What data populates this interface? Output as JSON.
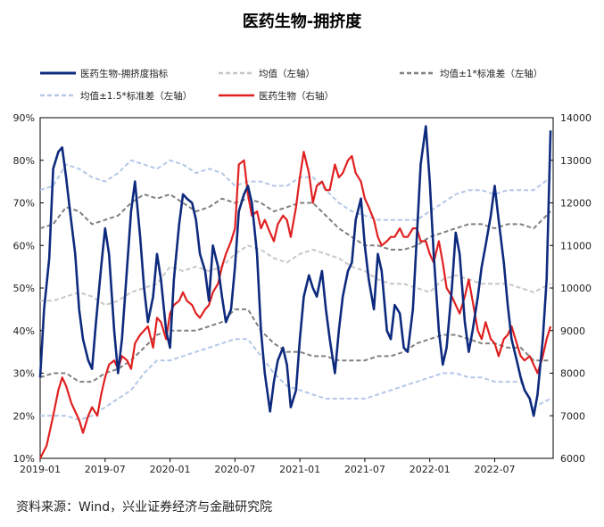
{
  "chart_data": {
    "type": "line",
    "title": "医药生物-拥挤度",
    "source": "资料来源：Wind，兴业证券经济与金融研究院",
    "colors": {
      "crowding": "#0d2a7e",
      "mean": "#c7c7c7",
      "band1": "#808080",
      "band15": "#b4c7e7",
      "index": "#e02020"
    },
    "legend": [
      {
        "key": "crowding",
        "label": "医药生物-拥挤度指标"
      },
      {
        "key": "mean",
        "label": "均值（左轴）"
      },
      {
        "key": "band1",
        "label": "均值±1*标准差（左轴）"
      },
      {
        "key": "band15",
        "label": "均值±1.5*标准差（左轴）"
      },
      {
        "key": "index",
        "label": "医药生物（右轴）"
      }
    ],
    "x_ticks": [
      "2019-01",
      "2019-07",
      "2020-01",
      "2020-07",
      "2021-01",
      "2021-07",
      "2022-01",
      "2022-07"
    ],
    "x_tick_times": [
      2019.0,
      2019.5,
      2020.0,
      2020.5,
      2021.0,
      2021.5,
      2022.0,
      2022.5
    ],
    "xlim": [
      2019.0,
      2022.95
    ],
    "y_left": {
      "ticks": [
        "10%",
        "20%",
        "30%",
        "40%",
        "50%",
        "60%",
        "70%",
        "80%",
        "90%"
      ],
      "range": [
        10,
        90
      ]
    },
    "y_right": {
      "ticks": [
        "6000",
        "7000",
        "8000",
        "9000",
        "10000",
        "11000",
        "12000",
        "13000",
        "14000"
      ],
      "range": [
        6000,
        14000
      ]
    },
    "series": {
      "crowding": {
        "name": "医药生物-拥挤度指标",
        "axis": "left",
        "x": [
          2019.0,
          2019.03,
          2019.07,
          2019.1,
          2019.14,
          2019.17,
          2019.2,
          2019.23,
          2019.27,
          2019.3,
          2019.33,
          2019.37,
          2019.4,
          2019.43,
          2019.47,
          2019.5,
          2019.53,
          2019.57,
          2019.6,
          2019.63,
          2019.67,
          2019.7,
          2019.73,
          2019.77,
          2019.8,
          2019.83,
          2019.87,
          2019.9,
          2019.93,
          2019.97,
          2020.0,
          2020.03,
          2020.07,
          2020.1,
          2020.13,
          2020.17,
          2020.2,
          2020.23,
          2020.27,
          2020.3,
          2020.33,
          2020.37,
          2020.4,
          2020.43,
          2020.47,
          2020.5,
          2020.53,
          2020.57,
          2020.6,
          2020.63,
          2020.67,
          2020.7,
          2020.73,
          2020.77,
          2020.8,
          2020.83,
          2020.87,
          2020.9,
          2020.93,
          2020.97,
          2021.0,
          2021.03,
          2021.07,
          2021.1,
          2021.13,
          2021.17,
          2021.2,
          2021.23,
          2021.27,
          2021.3,
          2021.33,
          2021.37,
          2021.4,
          2021.43,
          2021.47,
          2021.5,
          2021.53,
          2021.57,
          2021.6,
          2021.63,
          2021.67,
          2021.7,
          2021.73,
          2021.77,
          2021.8,
          2021.83,
          2021.87,
          2021.9,
          2021.93,
          2021.97,
          2022.0,
          2022.03,
          2022.07,
          2022.1,
          2022.13,
          2022.17,
          2022.2,
          2022.23,
          2022.27,
          2022.3,
          2022.33,
          2022.37,
          2022.4,
          2022.43,
          2022.47,
          2022.5,
          2022.53,
          2022.57,
          2022.6,
          2022.63,
          2022.67,
          2022.7,
          2022.73,
          2022.77,
          2022.8,
          2022.83,
          2022.87,
          2022.9,
          2022.93
        ],
        "y": [
          29,
          45,
          57,
          78,
          82,
          83,
          76,
          68,
          58,
          45,
          38,
          33,
          31,
          42,
          55,
          64,
          58,
          40,
          30,
          38,
          55,
          68,
          75,
          62,
          50,
          42,
          48,
          58,
          52,
          40,
          36,
          52,
          65,
          72,
          71,
          70,
          66,
          58,
          54,
          47,
          60,
          55,
          48,
          42,
          45,
          55,
          68,
          72,
          74,
          70,
          58,
          40,
          30,
          21,
          28,
          33,
          36,
          32,
          22,
          26,
          38,
          48,
          53,
          50,
          48,
          54,
          45,
          38,
          30,
          40,
          48,
          54,
          56,
          66,
          71,
          60,
          52,
          45,
          58,
          54,
          40,
          38,
          46,
          44,
          36,
          35,
          45,
          62,
          79,
          88,
          75,
          58,
          40,
          32,
          36,
          50,
          63,
          58,
          42,
          35,
          40,
          48,
          55,
          60,
          67,
          74,
          66,
          56,
          46,
          38,
          33,
          29,
          26,
          24,
          20,
          25,
          38,
          52,
          87
        ]
      },
      "mean": {
        "name": "均值（左轴）",
        "axis": "left",
        "x": [
          2019.0,
          2019.1,
          2019.2,
          2019.3,
          2019.4,
          2019.5,
          2019.6,
          2019.7,
          2019.8,
          2019.9,
          2020.0,
          2020.1,
          2020.2,
          2020.3,
          2020.4,
          2020.5,
          2020.6,
          2020.7,
          2020.8,
          2020.9,
          2021.0,
          2021.1,
          2021.2,
          2021.3,
          2021.4,
          2021.5,
          2021.6,
          2021.7,
          2021.8,
          2021.9,
          2022.0,
          2022.1,
          2022.2,
          2022.3,
          2022.4,
          2022.5,
          2022.6,
          2022.7,
          2022.8,
          2022.93
        ],
        "y": [
          47,
          47,
          48,
          49,
          48,
          46,
          47,
          49,
          50,
          51,
          55,
          54,
          55,
          54,
          55,
          58,
          60,
          59,
          57,
          56,
          58,
          59,
          58,
          57,
          55,
          54,
          52,
          51,
          51,
          50,
          49,
          52,
          53,
          52,
          51,
          51,
          51,
          50,
          49,
          51
        ]
      },
      "mean_plus_1sd": {
        "name": "均值+1*标准差",
        "axis": "left",
        "x": [
          2019.0,
          2019.1,
          2019.2,
          2019.3,
          2019.4,
          2019.5,
          2019.6,
          2019.7,
          2019.8,
          2019.9,
          2020.0,
          2020.1,
          2020.2,
          2020.3,
          2020.4,
          2020.5,
          2020.6,
          2020.7,
          2020.8,
          2020.9,
          2021.0,
          2021.1,
          2021.2,
          2021.3,
          2021.4,
          2021.5,
          2021.6,
          2021.7,
          2021.8,
          2021.9,
          2022.0,
          2022.1,
          2022.2,
          2022.3,
          2022.4,
          2022.5,
          2022.6,
          2022.7,
          2022.8,
          2022.93
        ],
        "y": [
          64,
          65,
          69,
          68,
          65,
          66,
          67,
          70,
          72,
          71,
          72,
          70,
          68,
          69,
          71,
          70,
          71,
          70,
          68,
          69,
          70,
          70,
          67,
          64,
          62,
          60,
          60,
          59,
          59,
          60,
          62,
          63,
          64,
          65,
          65,
          64,
          65,
          65,
          64,
          68
        ]
      },
      "mean_minus_1sd": {
        "name": "均值-1*标准差",
        "axis": "left",
        "x": [
          2019.0,
          2019.1,
          2019.2,
          2019.3,
          2019.4,
          2019.5,
          2019.6,
          2019.7,
          2019.8,
          2019.9,
          2020.0,
          2020.1,
          2020.2,
          2020.3,
          2020.4,
          2020.5,
          2020.6,
          2020.7,
          2020.8,
          2020.9,
          2021.0,
          2021.1,
          2021.2,
          2021.3,
          2021.4,
          2021.5,
          2021.6,
          2021.7,
          2021.8,
          2021.9,
          2022.0,
          2022.1,
          2022.2,
          2022.3,
          2022.4,
          2022.5,
          2022.6,
          2022.7,
          2022.8,
          2022.93
        ],
        "y": [
          29,
          30,
          30,
          28,
          28,
          30,
          31,
          33,
          36,
          39,
          40,
          40,
          40,
          41,
          42,
          45,
          45,
          40,
          37,
          35,
          35,
          34,
          34,
          33,
          33,
          33,
          34,
          34,
          35,
          37,
          38,
          39,
          39,
          38,
          37,
          37,
          36,
          36,
          33,
          33
        ]
      },
      "mean_plus_15sd": {
        "name": "均值+1.5*标准差",
        "axis": "left",
        "x": [
          2019.0,
          2019.1,
          2019.2,
          2019.3,
          2019.4,
          2019.5,
          2019.6,
          2019.7,
          2019.8,
          2019.9,
          2020.0,
          2020.1,
          2020.2,
          2020.3,
          2020.4,
          2020.5,
          2020.6,
          2020.7,
          2020.8,
          2020.9,
          2021.0,
          2021.1,
          2021.2,
          2021.3,
          2021.4,
          2021.5,
          2021.6,
          2021.7,
          2021.8,
          2021.9,
          2022.0,
          2022.1,
          2022.2,
          2022.3,
          2022.4,
          2022.5,
          2022.6,
          2022.7,
          2022.8,
          2022.93
        ],
        "y": [
          73,
          74,
          79,
          78,
          76,
          75,
          77,
          80,
          79,
          78,
          80,
          79,
          77,
          78,
          77,
          74,
          75,
          75,
          74,
          74,
          76,
          76,
          73,
          70,
          68,
          67,
          66,
          66,
          66,
          66,
          68,
          70,
          72,
          73,
          73,
          72,
          73,
          73,
          73,
          76
        ]
      },
      "mean_minus_15sd": {
        "name": "均值-1.5*标准差",
        "axis": "left",
        "x": [
          2019.0,
          2019.1,
          2019.2,
          2019.3,
          2019.4,
          2019.5,
          2019.6,
          2019.7,
          2019.8,
          2019.9,
          2020.0,
          2020.1,
          2020.2,
          2020.3,
          2020.4,
          2020.5,
          2020.6,
          2020.7,
          2020.8,
          2020.9,
          2021.0,
          2021.1,
          2021.2,
          2021.3,
          2021.4,
          2021.5,
          2021.6,
          2021.7,
          2021.8,
          2021.9,
          2022.0,
          2022.1,
          2022.2,
          2022.3,
          2022.4,
          2022.5,
          2022.6,
          2022.7,
          2022.8,
          2022.93
        ],
        "y": [
          20,
          20,
          20,
          19,
          20,
          22,
          24,
          26,
          30,
          33,
          33,
          34,
          35,
          36,
          37,
          38,
          38,
          34,
          30,
          27,
          26,
          25,
          24,
          24,
          24,
          24,
          25,
          26,
          27,
          28,
          29,
          30,
          30,
          29,
          29,
          28,
          28,
          28,
          22,
          24
        ]
      },
      "index": {
        "name": "医药生物（右轴）",
        "axis": "right",
        "x": [
          2019.0,
          2019.05,
          2019.1,
          2019.14,
          2019.17,
          2019.2,
          2019.24,
          2019.27,
          2019.3,
          2019.33,
          2019.37,
          2019.4,
          2019.44,
          2019.47,
          2019.5,
          2019.53,
          2019.57,
          2019.6,
          2019.63,
          2019.67,
          2019.7,
          2019.73,
          2019.77,
          2019.8,
          2019.83,
          2019.87,
          2019.9,
          2019.93,
          2019.97,
          2020.0,
          2020.03,
          2020.07,
          2020.1,
          2020.13,
          2020.17,
          2020.2,
          2020.23,
          2020.27,
          2020.3,
          2020.33,
          2020.37,
          2020.4,
          2020.43,
          2020.47,
          2020.5,
          2020.53,
          2020.57,
          2020.6,
          2020.63,
          2020.67,
          2020.7,
          2020.73,
          2020.77,
          2020.8,
          2020.83,
          2020.87,
          2020.9,
          2020.93,
          2020.97,
          2021.0,
          2021.03,
          2021.07,
          2021.1,
          2021.13,
          2021.17,
          2021.2,
          2021.23,
          2021.27,
          2021.3,
          2021.33,
          2021.37,
          2021.4,
          2021.43,
          2021.47,
          2021.5,
          2021.53,
          2021.57,
          2021.6,
          2021.63,
          2021.67,
          2021.7,
          2021.73,
          2021.77,
          2021.8,
          2021.83,
          2021.87,
          2021.9,
          2021.93,
          2021.97,
          2022.0,
          2022.03,
          2022.07,
          2022.1,
          2022.13,
          2022.17,
          2022.2,
          2022.23,
          2022.27,
          2022.3,
          2022.33,
          2022.37,
          2022.4,
          2022.43,
          2022.47,
          2022.5,
          2022.53,
          2022.57,
          2022.6,
          2022.63,
          2022.67,
          2022.7,
          2022.73,
          2022.77,
          2022.8,
          2022.83,
          2022.87,
          2022.9,
          2022.93
        ],
        "y": [
          6000,
          6300,
          7000,
          7600,
          7900,
          7700,
          7300,
          7100,
          6900,
          6600,
          7000,
          7200,
          7000,
          7500,
          7900,
          8200,
          8300,
          8100,
          8400,
          8300,
          8100,
          8700,
          8900,
          9000,
          9100,
          8600,
          9300,
          9200,
          8800,
          9400,
          9600,
          9700,
          9900,
          9700,
          9600,
          9400,
          9300,
          9500,
          9600,
          9900,
          10100,
          10500,
          10800,
          11100,
          11400,
          12900,
          13000,
          12200,
          11700,
          11800,
          11400,
          11600,
          11300,
          11100,
          11500,
          11700,
          11600,
          11200,
          11900,
          12600,
          13200,
          12700,
          12000,
          12400,
          12500,
          12300,
          12300,
          12900,
          12600,
          12700,
          13000,
          13100,
          12700,
          12500,
          12100,
          11900,
          11600,
          11200,
          11000,
          11100,
          11200,
          11200,
          11400,
          11200,
          11200,
          11400,
          11400,
          11100,
          11100,
          10800,
          10600,
          11100,
          10600,
          10000,
          9800,
          9600,
          9400,
          9800,
          10200,
          9700,
          9000,
          8800,
          9200,
          8800,
          8700,
          8400,
          8800,
          8900,
          9100,
          8700,
          8400,
          8300,
          8400,
          8200,
          8000,
          8400,
          8800,
          9100
        ]
      }
    }
  }
}
